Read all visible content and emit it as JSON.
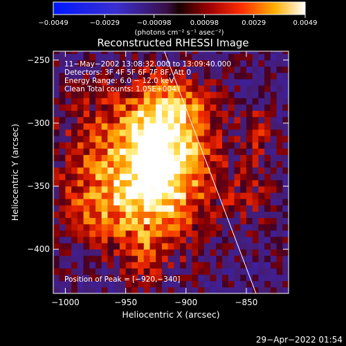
{
  "chart_data": {
    "type": "heatmap",
    "title": "Reconstructed RHESSI Image",
    "xlabel": "Heliocentric X (arcsec)",
    "ylabel": "Heliocentric Y (arcsec)",
    "xlim": [
      -1010,
      -815
    ],
    "ylim": [
      -435,
      -243
    ],
    "xticks": [
      -1000,
      -950,
      -900,
      -850
    ],
    "xtick_labels": [
      "−1000",
      "−950",
      "−900",
      "−850"
    ],
    "yticks": [
      -400,
      -350,
      -300,
      -250
    ],
    "ytick_labels": [
      "−400",
      "−350",
      "−300",
      "−250"
    ],
    "colorbar": {
      "min": -0.0049,
      "max": 0.0049,
      "ticks": [
        -0.0049,
        -0.0029,
        -0.00098,
        0.00098,
        0.0029,
        0.0049
      ],
      "tick_labels": [
        "−0.0049",
        "−0.0029",
        "−0.00098",
        "0.00098",
        "0.0029",
        "0.0049"
      ],
      "units": "(photons cm⁻² s⁻¹ asec⁻²)"
    },
    "annotations": [
      "11−May−2002 13:08:32.000 to 13:09:40.000",
      "Detectors: 3F 4F 5F 6F 7F 8F, Att 0",
      "Energy Range: 6.0 − 12.0 keV",
      "Clean     Total counts: 1.05E+004"
    ],
    "peak_label": "Position of Peak = [−920,−340]",
    "peak": [
      -920,
      -340
    ],
    "limb_line": [
      [
        -918,
        -243
      ],
      [
        -842,
        -435
      ]
    ],
    "sources": [
      {
        "x": -920,
        "y": -340,
        "sx": 26,
        "sy": 38,
        "amp": 1.0
      },
      {
        "x": -955,
        "y": -325,
        "sx": 38,
        "sy": 40,
        "amp": 0.55
      },
      {
        "x": -905,
        "y": -290,
        "sx": 22,
        "sy": 22,
        "amp": 0.45
      },
      {
        "x": -975,
        "y": -370,
        "sx": 22,
        "sy": 20,
        "amp": 0.35
      },
      {
        "x": -840,
        "y": -305,
        "sx": 12,
        "sy": 14,
        "amp": 0.38
      },
      {
        "x": -850,
        "y": -355,
        "sx": 18,
        "sy": 22,
        "amp": 0.28
      },
      {
        "x": -935,
        "y": -405,
        "sx": 14,
        "sy": 14,
        "amp": 0.3
      }
    ],
    "grid": false
  },
  "footer": {
    "timestamp": "29−Apr−2022 01:54"
  }
}
